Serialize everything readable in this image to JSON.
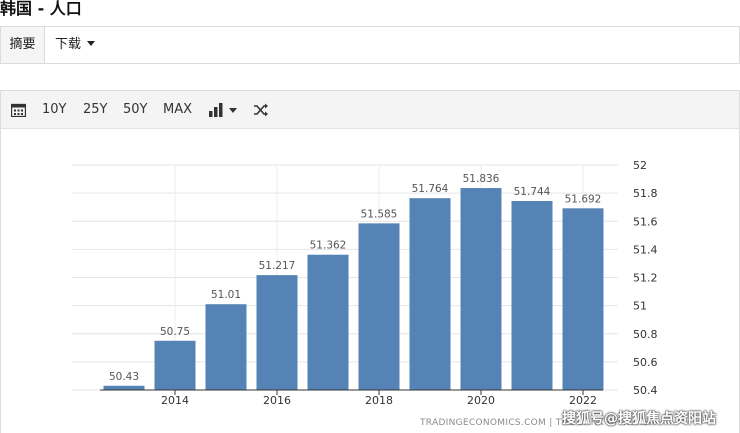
{
  "page": {
    "title": "韩国 - 人口"
  },
  "tabs": {
    "summary_label": "摘要",
    "download_label": "下载"
  },
  "toolbar": {
    "calendar_icon": "calendar-icon",
    "range_10y": "10Y",
    "range_25y": "25Y",
    "range_50y": "50Y",
    "range_max": "MAX",
    "chart_type_icon": "bar-chart-icon",
    "shuffle_icon": "shuffle-icon"
  },
  "chart_data": {
    "type": "bar",
    "categories": [
      "2013",
      "2014",
      "2015",
      "2016",
      "2017",
      "2018",
      "2019",
      "2020",
      "2021",
      "2022"
    ],
    "values": [
      50.43,
      50.75,
      51.01,
      51.217,
      51.362,
      51.585,
      51.764,
      51.836,
      51.744,
      51.692
    ],
    "value_labels": [
      "50.43",
      "50.75",
      "51.01",
      "51.217",
      "51.362",
      "51.585",
      "51.764",
      "51.836",
      "51.744",
      "51.692"
    ],
    "x_tick_labels": [
      "2014",
      "2016",
      "2018",
      "2020",
      "2022"
    ],
    "y_ticks": [
      "50.4",
      "50.6",
      "50.8",
      "51",
      "51.2",
      "51.4",
      "51.6",
      "51.8",
      "52"
    ],
    "ylim": [
      50.4,
      52
    ],
    "grid": true,
    "bar_color": "#5683b5"
  },
  "source": "TRADINGECONOMICS.COM | THE BANK OF KOREA",
  "watermark": "搜狐号@搜狐焦点资阳站"
}
